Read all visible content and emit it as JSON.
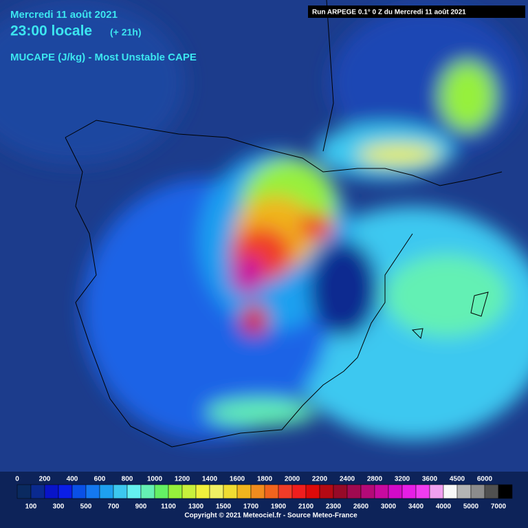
{
  "header": {
    "date": "Mercredi 11 août 2021",
    "time": "23:00 locale",
    "offset": "(+ 21h)",
    "parameter": "MUCAPE (J/kg) - Most Unstable CAPE",
    "run": "Run ARPEGE 0.1° 0 Z du Mercredi 11 août 2021"
  },
  "scale": {
    "labels": [
      0,
      100,
      200,
      300,
      400,
      500,
      600,
      700,
      800,
      900,
      1000,
      1100,
      1200,
      1300,
      1400,
      1500,
      1600,
      1700,
      1800,
      1900,
      2000,
      2100,
      2200,
      2300,
      2400,
      2600,
      2800,
      3000,
      3200,
      3400,
      3600,
      4000,
      4500,
      5000,
      6000,
      7000
    ],
    "colors": [
      "#0a2a60",
      "#0a2a90",
      "#0814c8",
      "#0a1ee6",
      "#0a50e6",
      "#1478f0",
      "#1ea0f0",
      "#3cc8f0",
      "#64f0f0",
      "#64f0b4",
      "#64f064",
      "#96f03c",
      "#c8f03c",
      "#f0f03c",
      "#f0f064",
      "#f0dc32",
      "#f0b41e",
      "#f08c1e",
      "#f0641e",
      "#f03c28",
      "#f01e1e",
      "#dc0a0a",
      "#b40a14",
      "#960a28",
      "#a00a50",
      "#b40a78",
      "#c80aa0",
      "#d20ac8",
      "#e61ee6",
      "#f03cf0",
      "#f0a0f0",
      "#f8f8f8",
      "#b4b4b4",
      "#8c8c8c",
      "#505050",
      "#000000"
    ]
  },
  "footer": {
    "copyright": "Copyright © 2021 Meteociel.fr - Source Meteo-France"
  }
}
